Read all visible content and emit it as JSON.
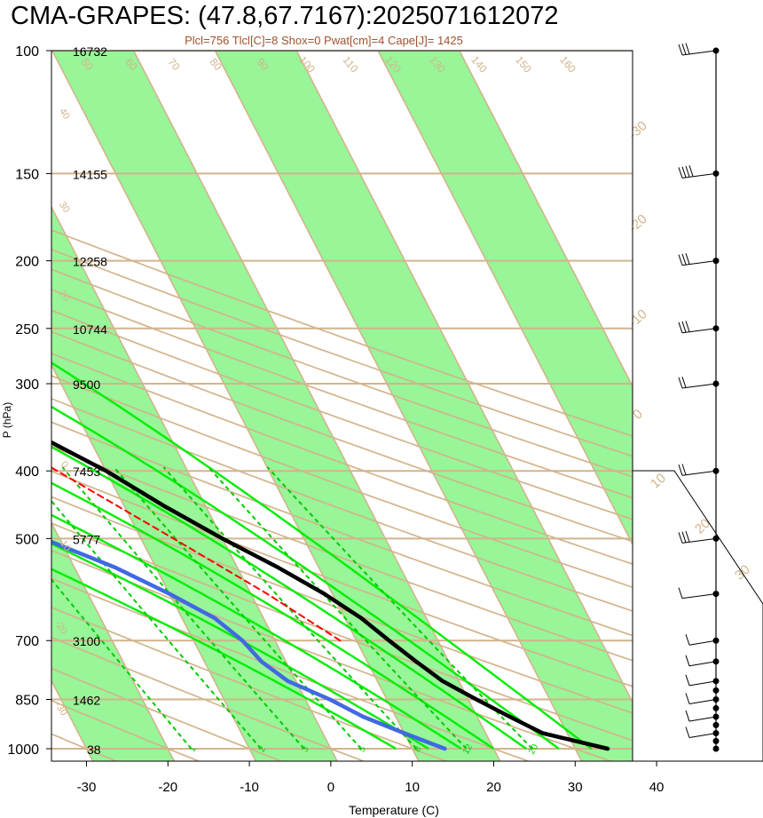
{
  "title": "CMA-GRAPES: (47.8,67.7167):2025071612072",
  "subtitle": "Plcl=756 Tlcl[C]=8 Shox=0 Pwat[cm]=4 Cape[J]= 1425",
  "colors": {
    "dry_adiabat": "#d2b48c",
    "isotherm": "#d2b48c",
    "band": "#98f598",
    "moist_adiabat": "#00ee00",
    "mixing_ratio": "#00cc00",
    "temperature": "#000000",
    "dewpoint": "#4169e1",
    "parcel": "#ff0000",
    "wind": "#000000"
  },
  "chart_data": {
    "type": "skew-t",
    "xlabel": "Temperature (C)",
    "ylabel": "P (hPa)",
    "x_ticks": [
      -30,
      -20,
      -10,
      0,
      10,
      20,
      30,
      40
    ],
    "pressure_ticks": [
      100,
      150,
      200,
      250,
      300,
      400,
      500,
      700,
      850,
      1000
    ],
    "heights": [
      {
        "p": 100,
        "label": "16732"
      },
      {
        "p": 150,
        "label": "14155"
      },
      {
        "p": 200,
        "label": "12258"
      },
      {
        "p": 250,
        "label": "10744"
      },
      {
        "p": 300,
        "label": "9500"
      },
      {
        "p": 400,
        "label": "7453"
      },
      {
        "p": 500,
        "label": "5777"
      },
      {
        "p": 700,
        "label": "3100"
      },
      {
        "p": 850,
        "label": "1462"
      },
      {
        "p": 1000,
        "label": "38"
      }
    ],
    "moist_adiabat_labels": [
      "8",
      "12",
      "16",
      "20",
      "24",
      "28",
      "32"
    ],
    "mixing_ratio_labels": [
      "1",
      "2",
      "3",
      "5",
      "8",
      "12",
      "20"
    ],
    "dry_adiabat_top_labels": [
      "50",
      "60",
      "70",
      "80",
      "90",
      "100",
      "110",
      "120",
      "130",
      "140",
      "150",
      "160"
    ],
    "dry_adiabat_left_labels": [
      "40",
      "30",
      "20",
      "0",
      "-10",
      "-20",
      "-30"
    ],
    "isotherm_right_labels": [
      "-30",
      "-20",
      "-10",
      "0",
      "10",
      "20",
      "30"
    ],
    "series": [
      {
        "name": "Temperature",
        "points": [
          {
            "p": 1000,
            "t": 34
          },
          {
            "p": 950,
            "t": 27
          },
          {
            "p": 900,
            "t": 24
          },
          {
            "p": 850,
            "t": 21
          },
          {
            "p": 800,
            "t": 18
          },
          {
            "p": 750,
            "t": 16
          },
          {
            "p": 700,
            "t": 14
          },
          {
            "p": 650,
            "t": 12
          },
          {
            "p": 600,
            "t": 9
          },
          {
            "p": 550,
            "t": 5
          },
          {
            "p": 500,
            "t": 0
          },
          {
            "p": 450,
            "t": -5
          },
          {
            "p": 400,
            "t": -10
          },
          {
            "p": 350,
            "t": -17
          },
          {
            "p": 300,
            "t": -25
          },
          {
            "p": 275,
            "t": -30
          },
          {
            "p": 250,
            "t": -31
          },
          {
            "p": 225,
            "t": -34
          },
          {
            "p": 200,
            "t": -43
          },
          {
            "p": 150,
            "t": -55
          },
          {
            "p": 125,
            "t": -62
          },
          {
            "p": 100,
            "t": -67
          }
        ]
      },
      {
        "name": "Dewpoint",
        "points": [
          {
            "p": 1000,
            "t": 14
          },
          {
            "p": 950,
            "t": 10
          },
          {
            "p": 900,
            "t": 6
          },
          {
            "p": 850,
            "t": 3
          },
          {
            "p": 800,
            "t": -1
          },
          {
            "p": 750,
            "t": -3
          },
          {
            "p": 700,
            "t": -4
          },
          {
            "p": 650,
            "t": -6
          },
          {
            "p": 600,
            "t": -10
          },
          {
            "p": 550,
            "t": -15
          },
          {
            "p": 500,
            "t": -22
          },
          {
            "p": 450,
            "t": -23
          },
          {
            "p": 400,
            "t": -25
          },
          {
            "p": 350,
            "t": -30
          },
          {
            "p": 300,
            "t": -33
          },
          {
            "p": 275,
            "t": -37
          },
          {
            "p": 250,
            "t": -52
          },
          {
            "p": 225,
            "t": -66
          },
          {
            "p": 200,
            "t": -71
          },
          {
            "p": 150,
            "t": -82
          },
          {
            "p": 125,
            "t": -88
          },
          {
            "p": 100,
            "t": -98
          }
        ]
      },
      {
        "name": "Parcel",
        "points": [
          {
            "p": 700,
            "t": 8
          },
          {
            "p": 600,
            "t": 2
          },
          {
            "p": 500,
            "t": -6
          },
          {
            "p": 400,
            "t": -16
          },
          {
            "p": 330,
            "t": -25
          },
          {
            "p": 280,
            "t": -33
          }
        ]
      }
    ],
    "wind_pressures": [
      100,
      150,
      200,
      250,
      300,
      400,
      500,
      600,
      700,
      750,
      800,
      825,
      850,
      875,
      900,
      925,
      950,
      975,
      1000
    ],
    "winds": [
      {
        "p": 100,
        "barbs": 3
      },
      {
        "p": 150,
        "barbs": 4
      },
      {
        "p": 200,
        "barbs": 3
      },
      {
        "p": 250,
        "barbs": 3
      },
      {
        "p": 300,
        "barbs": 2
      },
      {
        "p": 400,
        "barbs": 2
      },
      {
        "p": 500,
        "barbs": 3
      },
      {
        "p": 600,
        "barbs": 1
      },
      {
        "p": 700,
        "barbs": 1
      },
      {
        "p": 750,
        "barbs": 1
      },
      {
        "p": 800,
        "barbs": 1
      },
      {
        "p": 850,
        "barbs": 1
      },
      {
        "p": 900,
        "barbs": 1
      },
      {
        "p": 950,
        "barbs": 1
      }
    ]
  }
}
